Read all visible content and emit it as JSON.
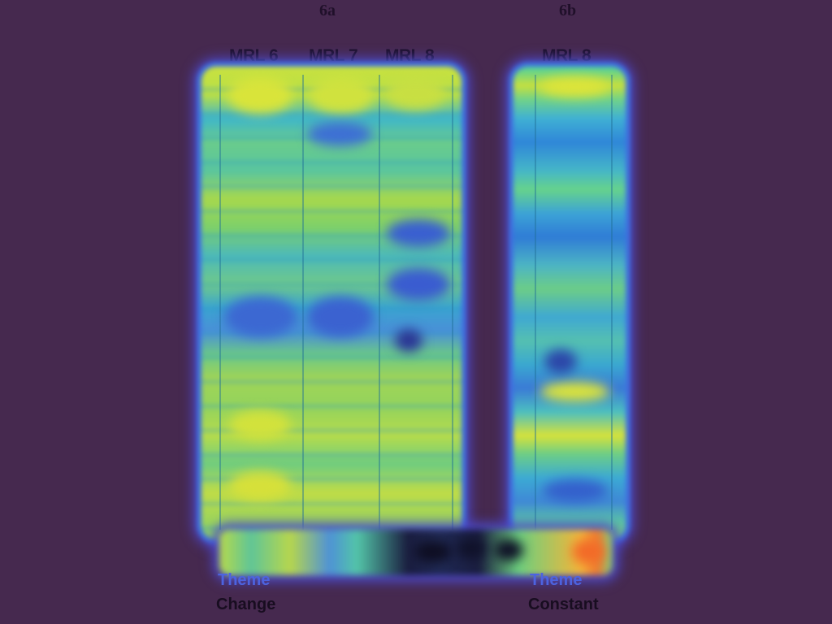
{
  "figure_labels": {
    "left": "6a",
    "right": "6b"
  },
  "columns_a": [
    "MRL 6",
    "MRL 7",
    "MRL 8"
  ],
  "columns_b": [
    "MRL 8"
  ],
  "footer_left": {
    "line1": "Theme",
    "line2": "Change"
  },
  "footer_right": {
    "line1": "Theme",
    "line2": "Constant"
  },
  "colors": {
    "background": "#46294f",
    "hot": "#f07a2e",
    "warm": "#d6e23a",
    "mid": "#6ccd87",
    "cool": "#2f7cd6",
    "cold": "#1a1d3f"
  }
}
